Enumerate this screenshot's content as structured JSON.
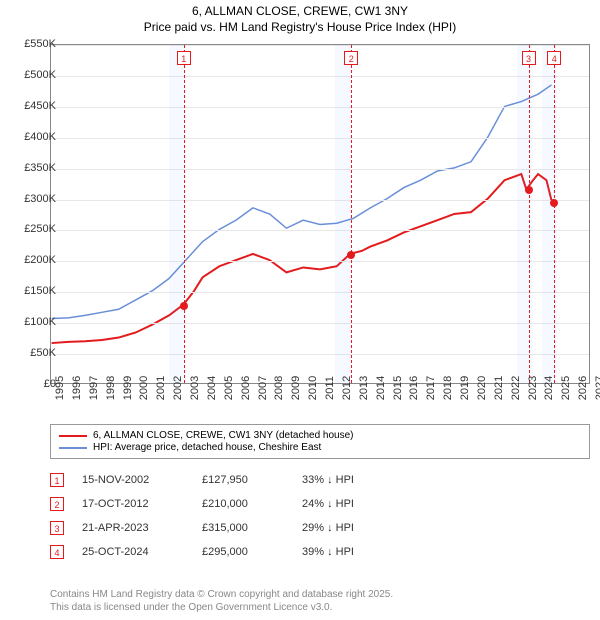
{
  "title": {
    "line1": "6, ALLMAN CLOSE, CREWE, CW1 3NY",
    "line2": "Price paid vs. HM Land Registry's House Price Index (HPI)"
  },
  "chart": {
    "type": "line",
    "xlim": [
      1995,
      2027
    ],
    "ylim": [
      0,
      550000
    ],
    "ytick_step": 50000,
    "ytick_labels": [
      "£0",
      "£50K",
      "£100K",
      "£150K",
      "£200K",
      "£250K",
      "£300K",
      "£350K",
      "£400K",
      "£450K",
      "£500K",
      "£550K"
    ],
    "xticks": [
      1995,
      1996,
      1997,
      1998,
      1999,
      2000,
      2001,
      2002,
      2003,
      2004,
      2005,
      2006,
      2007,
      2008,
      2009,
      2010,
      2011,
      2012,
      2013,
      2014,
      2015,
      2016,
      2017,
      2018,
      2019,
      2020,
      2021,
      2022,
      2023,
      2024,
      2025,
      2026,
      2027
    ],
    "background_color": "#ffffff",
    "grid_color": "#e8e8e8",
    "shaded_ranges": [
      [
        2002.0,
        2003.0
      ],
      [
        2011.8,
        2012.8
      ],
      [
        2022.6,
        2023.5
      ],
      [
        2024.1,
        2025.0
      ]
    ],
    "shaded_color": "rgba(100,150,255,0.06)",
    "series": [
      {
        "name": "6, ALLMAN CLOSE, CREWE, CW1 3NY (detached house)",
        "color": "#e41a1c",
        "width": 2,
        "points": [
          [
            1995,
            65000
          ],
          [
            1996,
            67000
          ],
          [
            1997,
            68000
          ],
          [
            1998,
            70000
          ],
          [
            1999,
            74000
          ],
          [
            2000,
            82000
          ],
          [
            2001,
            95000
          ],
          [
            2002,
            110000
          ],
          [
            2002.87,
            127950
          ],
          [
            2003.5,
            150000
          ],
          [
            2004,
            172000
          ],
          [
            2005,
            190000
          ],
          [
            2006,
            200000
          ],
          [
            2007,
            210000
          ],
          [
            2008,
            200000
          ],
          [
            2009,
            180000
          ],
          [
            2010,
            188000
          ],
          [
            2011,
            185000
          ],
          [
            2012,
            190000
          ],
          [
            2012.79,
            210000
          ],
          [
            2013.5,
            215000
          ],
          [
            2014,
            222000
          ],
          [
            2015,
            232000
          ],
          [
            2016,
            245000
          ],
          [
            2017,
            255000
          ],
          [
            2018,
            265000
          ],
          [
            2019,
            275000
          ],
          [
            2020,
            278000
          ],
          [
            2021,
            300000
          ],
          [
            2022,
            330000
          ],
          [
            2023,
            340000
          ],
          [
            2023.3,
            315000
          ],
          [
            2023.7,
            330000
          ],
          [
            2024,
            340000
          ],
          [
            2024.5,
            330000
          ],
          [
            2024.82,
            295000
          ]
        ]
      },
      {
        "name": "HPI: Average price, detached house, Cheshire East",
        "color": "#6a8fd8",
        "width": 1.5,
        "points": [
          [
            1995,
            105000
          ],
          [
            1996,
            106000
          ],
          [
            1997,
            110000
          ],
          [
            1998,
            115000
          ],
          [
            1999,
            120000
          ],
          [
            2000,
            135000
          ],
          [
            2001,
            150000
          ],
          [
            2002,
            170000
          ],
          [
            2003,
            200000
          ],
          [
            2004,
            230000
          ],
          [
            2005,
            250000
          ],
          [
            2006,
            265000
          ],
          [
            2007,
            285000
          ],
          [
            2008,
            275000
          ],
          [
            2009,
            252000
          ],
          [
            2010,
            265000
          ],
          [
            2011,
            258000
          ],
          [
            2012,
            260000
          ],
          [
            2013,
            268000
          ],
          [
            2014,
            285000
          ],
          [
            2015,
            300000
          ],
          [
            2016,
            318000
          ],
          [
            2017,
            330000
          ],
          [
            2018,
            345000
          ],
          [
            2019,
            350000
          ],
          [
            2020,
            360000
          ],
          [
            2021,
            400000
          ],
          [
            2022,
            450000
          ],
          [
            2023,
            458000
          ],
          [
            2024,
            470000
          ],
          [
            2024.8,
            485000
          ]
        ]
      }
    ],
    "markers": [
      {
        "num": "1",
        "x": 2002.87,
        "date": "15-NOV-2002",
        "price": "£127,950",
        "pct": "33% ↓ HPI",
        "y": 127950
      },
      {
        "num": "2",
        "x": 2012.79,
        "date": "17-OCT-2012",
        "price": "£210,000",
        "pct": "24% ↓ HPI",
        "y": 210000
      },
      {
        "num": "3",
        "x": 2023.3,
        "date": "21-APR-2023",
        "price": "£315,000",
        "pct": "29% ↓ HPI",
        "y": 315000
      },
      {
        "num": "4",
        "x": 2024.82,
        "date": "25-OCT-2024",
        "price": "£295,000",
        "pct": "39% ↓ HPI",
        "y": 295000
      }
    ]
  },
  "legend": {
    "items": [
      {
        "color": "#e41a1c",
        "label": "6, ALLMAN CLOSE, CREWE, CW1 3NY (detached house)"
      },
      {
        "color": "#6a8fd8",
        "label": "HPI: Average price, detached house, Cheshire East"
      }
    ]
  },
  "footer": {
    "line1": "Contains HM Land Registry data © Crown copyright and database right 2025.",
    "line2": "This data is licensed under the Open Government Licence v3.0."
  }
}
